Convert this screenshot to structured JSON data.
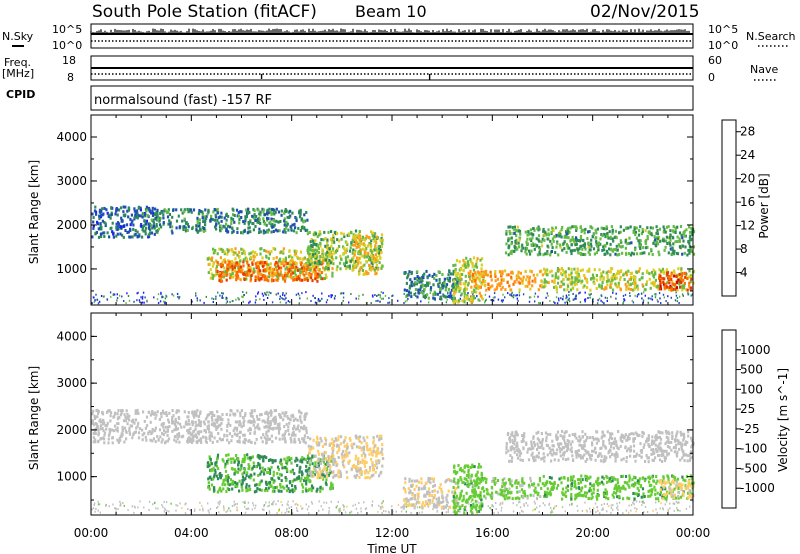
{
  "header": {
    "station": "South Pole Station (fitACF)",
    "beam": "Beam 10",
    "date": "02/Nov/2015"
  },
  "status_panels": {
    "nsky": {
      "label": "N.Sky",
      "top_tick": "10^5",
      "bottom_tick": "10^0"
    },
    "nsearch": {
      "label": "N.Search",
      "top_tick": "10^5",
      "bottom_tick": "10^0"
    },
    "freq": {
      "label_line1": "Freq.",
      "label_line2": "[MHz]",
      "top_tick": "18",
      "bottom_tick": "8"
    },
    "nave": {
      "label": "Nave",
      "top_tick": "60",
      "bottom_tick": "0"
    },
    "cpid": {
      "label": "CPID",
      "text": "normalsound (fast) -157 RF"
    }
  },
  "chart_data": [
    {
      "type": "heatmap",
      "ylabel": "Slant Range [km]",
      "ylim": [
        180,
        4500
      ],
      "yticks": [
        "1000",
        "2000",
        "3000",
        "4000"
      ],
      "xlim": [
        "00:00",
        "24:00"
      ],
      "colorbar": {
        "label": "Power [dB]",
        "ticks": [
          "4",
          "8",
          "12",
          "16",
          "20",
          "24",
          "28"
        ],
        "range": [
          0,
          30
        ],
        "colors": [
          "#1a1aff",
          "#1f4fb0",
          "#2e8b57",
          "#66bb44",
          "#ddcc22",
          "#ff9a1a",
          "#ff6a00",
          "#e63b00",
          "#cc0000"
        ]
      },
      "regions": [
        {
          "t0": 0.0,
          "t1": 2.6,
          "r0": 1750,
          "r1": 2450,
          "value": 6
        },
        {
          "t0": 2.0,
          "t1": 8.6,
          "r0": 1850,
          "r1": 2400,
          "value": 8
        },
        {
          "t0": 4.6,
          "t1": 9.6,
          "r0": 800,
          "r1": 1500,
          "value": 14
        },
        {
          "t0": 5.0,
          "t1": 9.2,
          "r0": 750,
          "r1": 1200,
          "value": 22
        },
        {
          "t0": 8.6,
          "t1": 11.6,
          "r0": 1000,
          "r1": 1900,
          "value": 12
        },
        {
          "t0": 10.4,
          "t1": 11.4,
          "r0": 900,
          "r1": 1800,
          "value": 16
        },
        {
          "t0": 12.4,
          "t1": 14.6,
          "r0": 350,
          "r1": 1000,
          "value": 8
        },
        {
          "t0": 14.4,
          "t1": 15.6,
          "r0": 250,
          "r1": 1300,
          "value": 14
        },
        {
          "t0": 15.0,
          "t1": 18.0,
          "r0": 550,
          "r1": 1000,
          "value": 18
        },
        {
          "t0": 16.5,
          "t1": 24.0,
          "r0": 1350,
          "r1": 2000,
          "value": 10
        },
        {
          "t0": 18.0,
          "t1": 24.0,
          "r0": 550,
          "r1": 1050,
          "value": 14
        },
        {
          "t0": 22.6,
          "t1": 24.0,
          "r0": 550,
          "r1": 950,
          "value": 24
        }
      ]
    },
    {
      "type": "heatmap",
      "ylabel": "Slant Range [km]",
      "ylim": [
        180,
        4500
      ],
      "yticks": [
        "1000",
        "2000",
        "3000",
        "4000"
      ],
      "xlabel": "Time UT",
      "xticks": [
        "00:00",
        "04:00",
        "08:00",
        "12:00",
        "16:00",
        "20:00",
        "00:00"
      ],
      "colorbar": {
        "label": "Velocity [m s^-1]",
        "ticks": [
          "1000",
          "500",
          "100",
          "25",
          "-25",
          "-100",
          "-500",
          "-1000"
        ],
        "range": [
          -1200,
          1200
        ],
        "colors": [
          "#2233bb",
          "#1f6fa0",
          "#2e8b57",
          "#66cc33",
          "#c0c0c0",
          "#ffcc66",
          "#ff8c00",
          "#ff5500",
          "#e01010"
        ]
      },
      "regions": [
        {
          "t0": 0.0,
          "t1": 8.6,
          "r0": 1750,
          "r1": 2450,
          "value": 0
        },
        {
          "t0": 4.6,
          "t1": 9.6,
          "r0": 700,
          "r1": 1500,
          "value": -400
        },
        {
          "t0": 8.6,
          "t1": 11.6,
          "r0": 1000,
          "r1": 1900,
          "value": 150
        },
        {
          "t0": 12.4,
          "t1": 14.6,
          "r0": 350,
          "r1": 1000,
          "value": 100
        },
        {
          "t0": 14.4,
          "t1": 15.6,
          "r0": 250,
          "r1": 1300,
          "value": -300
        },
        {
          "t0": 15.0,
          "t1": 18.0,
          "r0": 550,
          "r1": 1000,
          "value": -200
        },
        {
          "t0": 16.5,
          "t1": 24.0,
          "r0": 1350,
          "r1": 2000,
          "value": 0
        },
        {
          "t0": 18.0,
          "t1": 24.0,
          "r0": 550,
          "r1": 1050,
          "value": -300
        },
        {
          "t0": 22.6,
          "t1": 24.0,
          "r0": 550,
          "r1": 950,
          "value": 200
        }
      ]
    }
  ]
}
